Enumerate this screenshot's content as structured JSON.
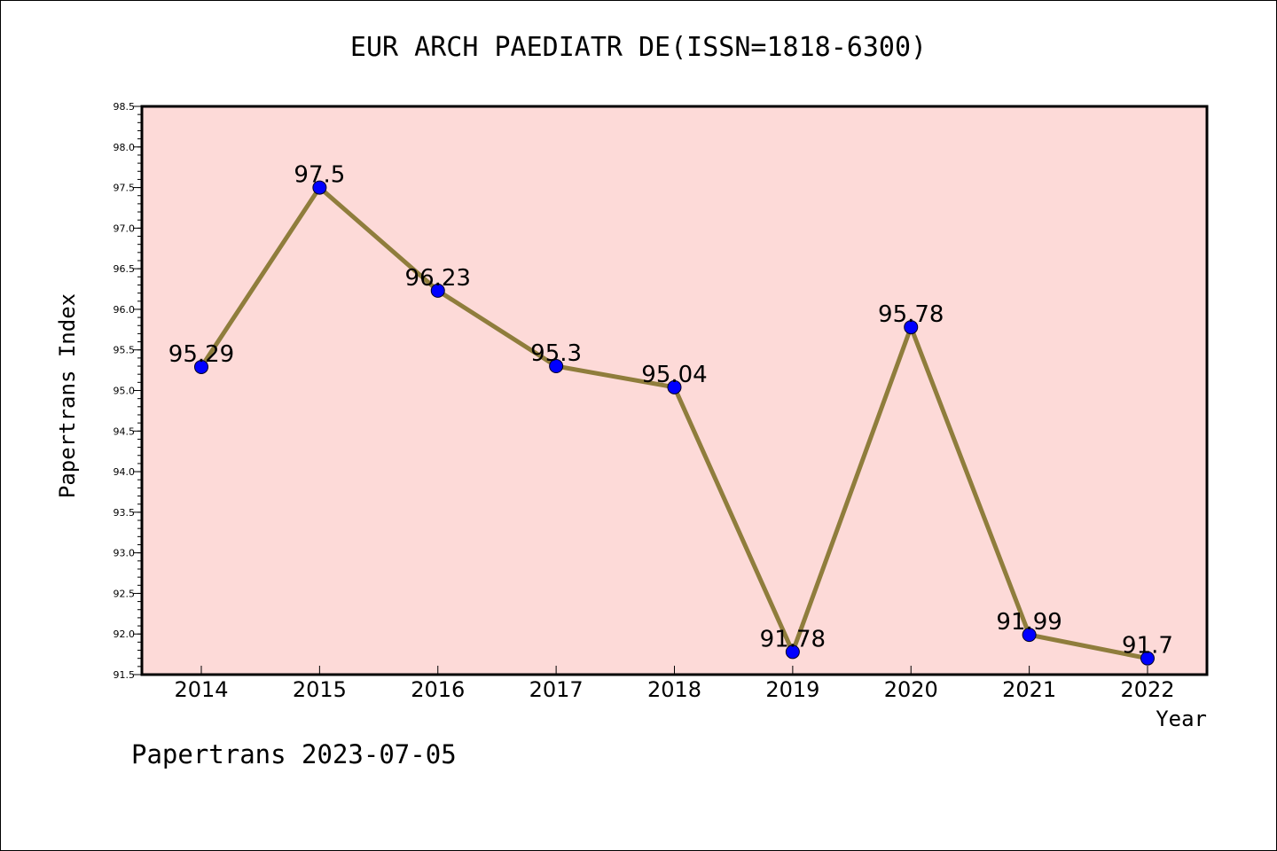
{
  "chart_data": {
    "type": "line",
    "title": "EUR ARCH PAEDIATR DE(ISSN=1818-6300)",
    "xlabel": "Year",
    "ylabel": "Papertrans Index",
    "categories": [
      "2014",
      "2015",
      "2016",
      "2017",
      "2018",
      "2019",
      "2020",
      "2021",
      "2022"
    ],
    "values": [
      95.29,
      97.5,
      96.23,
      95.3,
      95.04,
      91.78,
      95.78,
      91.99,
      91.7
    ],
    "data_labels": [
      "95.29",
      "97.5",
      "96.23",
      "95.3",
      "95.04",
      "91.78",
      "95.78",
      "91.99",
      "91.7"
    ],
    "ylim": [
      91.5,
      98.5
    ],
    "y_ticks": [
      "91.5",
      "92.0",
      "92.5",
      "93.0",
      "93.5",
      "94.0",
      "94.5",
      "95.0",
      "95.5",
      "96.0",
      "96.5",
      "97.0",
      "97.5",
      "98.0",
      "98.5"
    ],
    "grid": false,
    "colors": {
      "plot_background": "#fddad8",
      "line": "#8f7d3c",
      "marker": "#0000ff"
    }
  },
  "footer": "Papertrans 2023-07-05"
}
